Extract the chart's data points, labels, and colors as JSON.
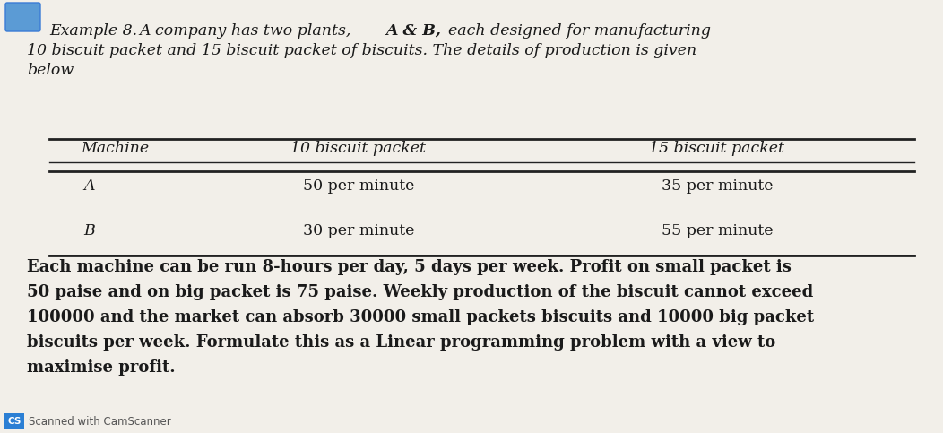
{
  "bg_color": "#f2efe9",
  "text_color": "#1a1a1a",
  "line_color": "#222222",
  "intro_line1_italic": "Example 8.",
  "intro_line1_rest": " A company has two plants, ",
  "intro_line1_bold_italic": "A & B,",
  "intro_line1_end": " each designed for manufacturing",
  "intro_line2": "10 biscuit packet and 15 biscuit packet of biscuits. The details of production is given",
  "intro_line3": "below",
  "table_col1_header": "Machine",
  "table_col2_header": "10 biscuit packet",
  "table_col3_header": "15 biscuit packet",
  "table_row1": [
    "A",
    "50 per minute",
    "35 per minute"
  ],
  "table_row2": [
    "B",
    "30 per minute",
    "55 per minute"
  ],
  "body_line1_normal": "Each machine can be run 8-hours per day, 5 days per week. ",
  "body_line1_bold": "Profit on small packet is",
  "body_line2_normal": "50 paise and on big packet is 75 paise. ",
  "body_line2_bold": "Weekly production of the biscuit cannot exceed",
  "body_line3_normal": "100000 and the market can absorb 30000 ",
  "body_line3_bold": "small packets biscuits and 10000 big packet",
  "body_line4_normal": "biscuits per week. ",
  "body_line4_bold": "Formulate this as a Linear programming problem with a view to",
  "body_line5_bold": "maximise profit.",
  "footer": "Scanned with CamScanner",
  "fontsize": 12.5,
  "table_fontsize": 12.5
}
